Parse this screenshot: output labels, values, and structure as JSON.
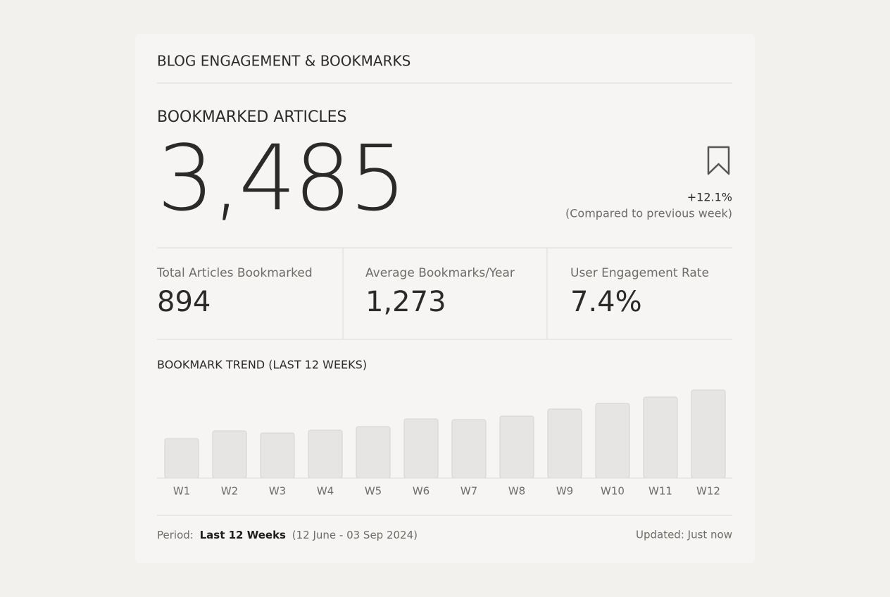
{
  "header": {
    "title": "BLOG ENGAGEMENT & BOOKMARKS"
  },
  "kpi": {
    "label": "BOOKMARKED ARTICLES",
    "value": "3,485",
    "change": "+12.1%",
    "comparison": "(Compared to previous week)"
  },
  "stats": [
    {
      "label": "Total Articles Bookmarked",
      "value": "894"
    },
    {
      "label": "Average Bookmarks/Year",
      "value": "1,273"
    },
    {
      "label": "User Engagement Rate",
      "value": "7.4%"
    }
  ],
  "chart_data": {
    "type": "bar",
    "title": "BOOKMARK TREND (LAST 12 WEEKS)",
    "categories": [
      "W1",
      "W2",
      "W3",
      "W4",
      "W5",
      "W6",
      "W7",
      "W8",
      "W9",
      "W10",
      "W11",
      "W12"
    ],
    "values": [
      56,
      67,
      64,
      68,
      73,
      84,
      83,
      88,
      98,
      106,
      115,
      125
    ],
    "color": "#e6e5e3"
  },
  "footer": {
    "period_label": "Period:",
    "period_value": "Last 12 Weeks",
    "period_range": "(12 June - 03 Sep 2024)",
    "updated": "Updated: Just now"
  }
}
